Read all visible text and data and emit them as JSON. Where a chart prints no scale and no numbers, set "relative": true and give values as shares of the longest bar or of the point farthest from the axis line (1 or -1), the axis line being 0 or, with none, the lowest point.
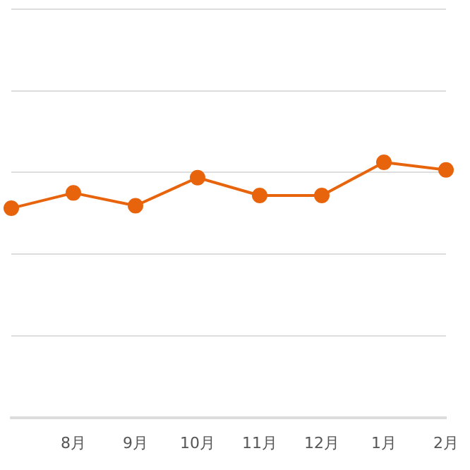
{
  "chart_data": {
    "type": "line",
    "relative": true,
    "categories": [
      null,
      "8月",
      "9月",
      "10月",
      "11月",
      "12月",
      "1月",
      "2月"
    ],
    "series": [
      {
        "color": "#e8640c",
        "values": [
          0.82,
          0.88,
          0.83,
          0.94,
          0.87,
          0.87,
          1,
          0.97
        ]
      }
    ],
    "marker": "circle",
    "line_style": "solid",
    "grid": "y",
    "legend": false
  }
}
